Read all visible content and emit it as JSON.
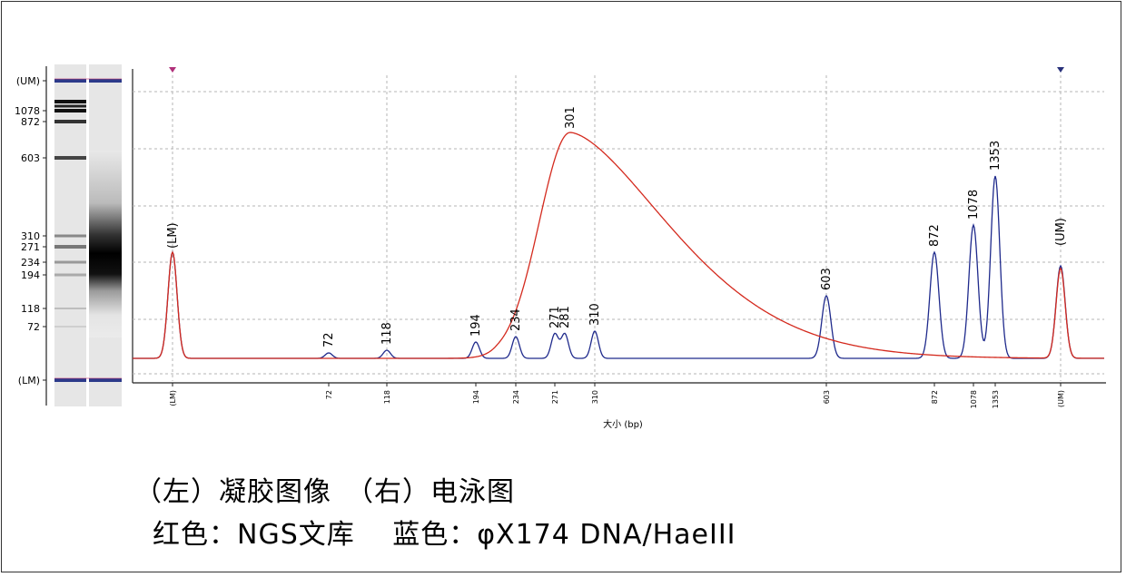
{
  "chart_data": {
    "type": "line",
    "xlabel": "大小 (bp)",
    "x_tick_labels": [
      "(LM)",
      "72",
      "118",
      "194",
      "234",
      "271",
      "310",
      "603",
      "872",
      "1078",
      "1353",
      "(UM)"
    ],
    "gel_ladder_labels": [
      "(UM)",
      "1078",
      "872",
      "603",
      "310",
      "271",
      "234",
      "194",
      "118",
      "72",
      "(LM)"
    ],
    "peak_labels_blue": [
      "(LM)",
      "72",
      "118",
      "194",
      "234",
      "271",
      "281",
      "310",
      "603",
      "872",
      "1078",
      "1353",
      "(UM)"
    ],
    "peak_label_red": "301",
    "grid": true,
    "series": [
      {
        "name": "红色：NGS文库",
        "color": "#d42a1e",
        "peaks": [
          {
            "at": "(LM)",
            "height": 0.39
          },
          {
            "at": "301",
            "height": 0.83,
            "smear_from": "194",
            "smear_to": "603+"
          },
          {
            "at": "(UM)",
            "height": 0.33
          }
        ]
      },
      {
        "name": "蓝色：φX174 DNA/HaeIII",
        "color": "#1f2a8c",
        "peaks": [
          {
            "at": "(LM)",
            "height": 0.39
          },
          {
            "at": "72",
            "height": 0.02
          },
          {
            "at": "118",
            "height": 0.03
          },
          {
            "at": "194",
            "height": 0.06
          },
          {
            "at": "234",
            "height": 0.08
          },
          {
            "at": "271",
            "height": 0.09
          },
          {
            "at": "281",
            "height": 0.09
          },
          {
            "at": "310",
            "height": 0.1
          },
          {
            "at": "603",
            "height": 0.23
          },
          {
            "at": "872",
            "height": 0.39
          },
          {
            "at": "1078",
            "height": 0.49
          },
          {
            "at": "1353",
            "height": 0.67
          },
          {
            "at": "(UM)",
            "height": 0.34
          }
        ]
      }
    ]
  },
  "caption": {
    "line1": "（左）凝胶图像　（右）电泳图",
    "line2": "红色：NGS文库　 蓝色：φX174 DNA/HaeIII"
  }
}
